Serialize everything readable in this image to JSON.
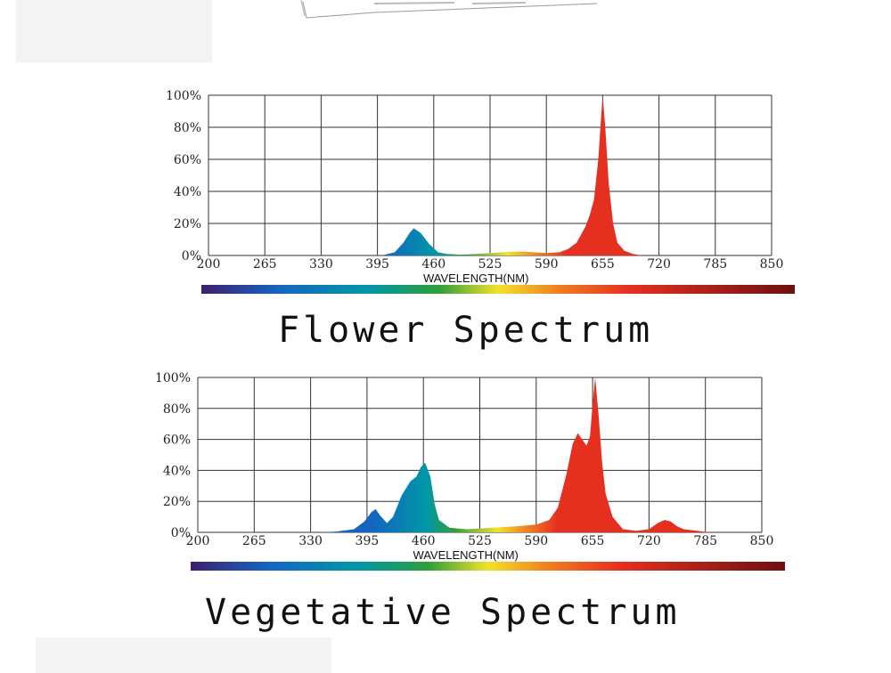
{
  "colors": {
    "grid": "#333333",
    "violet": "#3b1f6e",
    "blue": "#1565c0",
    "cyan": "#0097a7",
    "green": "#2e9e3a",
    "yellow": "#f2e22a",
    "orange": "#f08020",
    "red": "#e53020",
    "deep_red": "#6d1010"
  },
  "chart_data": [
    {
      "type": "area",
      "title": "Flower Spectrum",
      "xlabel": "WAVELENGTH(NM)",
      "ylabel": "",
      "xlim": [
        200,
        850
      ],
      "ylim": [
        0,
        100
      ],
      "x_ticks": [
        "200",
        "265",
        "330",
        "395",
        "460",
        "525",
        "590",
        "655",
        "720",
        "785",
        "850"
      ],
      "y_ticks": [
        "0%",
        "20%",
        "40%",
        "60%",
        "80%",
        "100%"
      ],
      "grid": true,
      "series": [
        {
          "x": [
            400,
            415,
            425,
            432,
            437,
            445,
            455,
            465,
            475,
            490,
            510,
            540,
            560,
            575,
            590,
            605,
            615,
            625,
            635,
            640,
            645,
            650,
            653,
            655,
            658,
            662,
            667,
            672,
            680,
            690,
            700
          ],
          "y": [
            0,
            2,
            8,
            14,
            17,
            14,
            7,
            2,
            1,
            0.5,
            1,
            2,
            2.5,
            2,
            1.5,
            2,
            4,
            8,
            18,
            25,
            35,
            60,
            85,
            100,
            80,
            45,
            20,
            8,
            3,
            1,
            0
          ]
        }
      ]
    },
    {
      "type": "area",
      "title": "Vegetative Spectrum",
      "xlabel": "WAVELENGTH(NM)",
      "ylabel": "",
      "xlim": [
        200,
        850
      ],
      "ylim": [
        0,
        100
      ],
      "x_ticks": [
        "200",
        "265",
        "330",
        "395",
        "460",
        "525",
        "590",
        "655",
        "720",
        "785",
        "850"
      ],
      "y_ticks": [
        "0%",
        "20%",
        "40%",
        "60%",
        "80%",
        "100%"
      ],
      "grid": true,
      "series": [
        {
          "x": [
            340,
            360,
            380,
            392,
            400,
            405,
            410,
            418,
            425,
            435,
            445,
            452,
            457,
            462,
            468,
            473,
            478,
            490,
            510,
            540,
            570,
            590,
            605,
            615,
            625,
            632,
            638,
            643,
            648,
            652,
            655,
            658,
            662,
            666,
            670,
            678,
            690,
            705,
            720,
            730,
            738,
            745,
            752,
            760,
            775,
            790
          ],
          "y": [
            0,
            0.5,
            2,
            7,
            13,
            15,
            11,
            6,
            10,
            24,
            33,
            36,
            42,
            45,
            36,
            18,
            8,
            3,
            2,
            3,
            4,
            5,
            8,
            16,
            38,
            57,
            64,
            60,
            56,
            62,
            83,
            100,
            75,
            45,
            25,
            10,
            2,
            1,
            2,
            6,
            8,
            7,
            4,
            2,
            1,
            0
          ]
        }
      ]
    }
  ]
}
